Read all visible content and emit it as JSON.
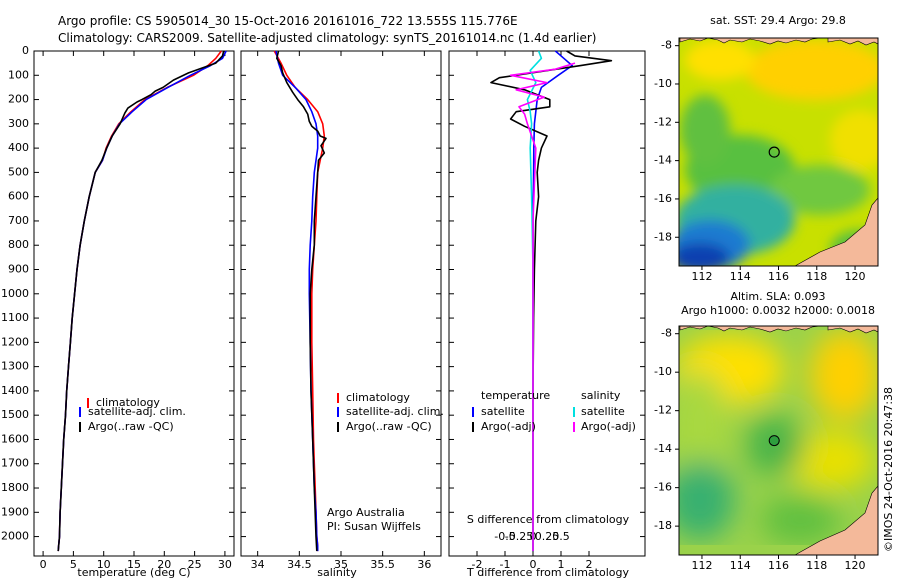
{
  "header": {
    "line1": "Argo profile: CS 5905014_30 15-Oct-2016 20161016_722 13.555S 115.776E",
    "line2": "Climatology: CARS2009. Satellite-adjusted climatology: synTS_20161014.nc (1.4d earlier)"
  },
  "colors": {
    "climatology": "#ff0000",
    "satellite": "#0000ff",
    "argo": "#000000",
    "s_satellite": "#00e0e0",
    "s_argo": "#ff00ff"
  },
  "chart_data": [
    {
      "type": "line",
      "id": "temperature",
      "xlabel": "temperature (deg C)",
      "ylabel": "",
      "xlim": [
        -1.5,
        31.5
      ],
      "ylim": [
        2080,
        0
      ],
      "xticks": [
        0,
        5,
        10,
        15,
        20,
        25,
        30
      ],
      "xticklabels": [
        "0",
        "5",
        "10",
        "15",
        "20",
        "25",
        "30"
      ],
      "yticks": [
        0,
        100,
        200,
        300,
        400,
        500,
        600,
        700,
        800,
        900,
        1000,
        1100,
        1200,
        1300,
        1400,
        1500,
        1600,
        1700,
        1800,
        1900,
        2000
      ],
      "yticklabels": [
        "0",
        "100",
        "200",
        "300",
        "400",
        "500",
        "600",
        "700",
        "800",
        "900",
        "1000",
        "1100",
        "1200",
        "1300",
        "1400",
        "1500",
        "1600",
        "1700",
        "1800",
        "1900",
        "2000"
      ],
      "legend": {
        "position": "center-left",
        "entries": [
          "climatology",
          "satellite-adj. clim.",
          "Argo(..raw -QC)"
        ]
      },
      "series": [
        {
          "name": "climatology",
          "color": "#ff0000",
          "x": [
            29.4,
            28.5,
            27.2,
            24.8,
            20.5,
            16.8,
            14.5,
            12.5,
            11.3,
            10.4,
            9.8,
            8.6,
            7.6,
            6.8,
            6.1,
            5.6,
            5.2,
            4.8,
            4.5,
            4.2,
            3.9,
            3.7,
            3.4,
            3.2,
            3.0,
            2.8,
            2.7,
            2.6,
            2.5
          ],
          "y": [
            0,
            30,
            60,
            100,
            150,
            200,
            250,
            300,
            350,
            400,
            450,
            500,
            600,
            700,
            800,
            900,
            1000,
            1100,
            1200,
            1300,
            1400,
            1500,
            1600,
            1700,
            1800,
            1900,
            2000,
            2030,
            2060
          ]
        },
        {
          "name": "satellite-adj. clim.",
          "color": "#0000ff",
          "x": [
            30.2,
            29.6,
            27.6,
            24.3,
            20.6,
            17.0,
            14.7,
            12.6,
            11.4,
            10.5,
            9.8,
            8.6,
            7.6,
            6.8,
            6.1,
            5.6,
            5.2,
            4.8,
            4.5,
            4.2,
            3.9,
            3.7,
            3.4,
            3.2,
            3.0,
            2.8,
            2.7,
            2.6,
            2.5
          ],
          "y": [
            0,
            30,
            60,
            100,
            150,
            200,
            250,
            300,
            350,
            400,
            450,
            500,
            600,
            700,
            800,
            900,
            1000,
            1100,
            1200,
            1300,
            1400,
            1500,
            1600,
            1700,
            1800,
            1900,
            2000,
            2030,
            2060
          ]
        },
        {
          "name": "Argo(..raw -QC)",
          "color": "#000000",
          "x": [
            29.8,
            29.6,
            28.5,
            24.0,
            21.5,
            19.8,
            18.5,
            17.8,
            16.3,
            15.5,
            14.0,
            13.5,
            12.7,
            11.4,
            10.5,
            9.7,
            8.6,
            7.6,
            6.8,
            6.1,
            5.6,
            5.2,
            4.8,
            4.5,
            4.2,
            3.9,
            3.7,
            3.4,
            3.2,
            3.0,
            2.8,
            2.7,
            2.5
          ],
          "y": [
            0,
            20,
            50,
            90,
            120,
            150,
            165,
            180,
            200,
            210,
            235,
            255,
            300,
            350,
            400,
            450,
            500,
            600,
            700,
            800,
            900,
            1000,
            1100,
            1200,
            1300,
            1400,
            1500,
            1600,
            1700,
            1800,
            1900,
            2000,
            2060
          ]
        }
      ]
    },
    {
      "type": "line",
      "id": "salinity",
      "xlabel": "salinity",
      "ylabel": "",
      "xlim": [
        33.8,
        36.2
      ],
      "ylim": [
        2080,
        0
      ],
      "xticks": [
        34,
        34.5,
        35,
        35.5,
        36
      ],
      "xticklabels": [
        "34",
        "34.5",
        "35",
        "35.5",
        "36"
      ],
      "legend": {
        "position": "center-right",
        "entries": [
          "climatology",
          "satellite-adj. clim.",
          "Argo(..raw -QC)"
        ]
      },
      "annotation": {
        "line1": "Argo Australia",
        "line2": "PI: Susan Wijffels"
      },
      "series": [
        {
          "name": "climatology",
          "color": "#ff0000",
          "x": [
            34.2,
            34.28,
            34.35,
            34.45,
            34.6,
            34.72,
            34.78,
            34.8,
            34.78,
            34.75,
            34.72,
            34.71,
            34.7,
            34.68,
            34.66,
            34.65,
            34.65,
            34.66,
            34.67,
            34.68,
            34.69,
            34.7,
            34.71,
            34.72,
            34.72
          ],
          "y": [
            0,
            50,
            100,
            150,
            200,
            250,
            300,
            350,
            400,
            450,
            500,
            600,
            700,
            800,
            900,
            1000,
            1200,
            1400,
            1600,
            1700,
            1800,
            1900,
            2000,
            2040,
            2060
          ]
        },
        {
          "name": "satellite-adj. clim.",
          "color": "#0000ff",
          "x": [
            34.22,
            34.25,
            34.3,
            34.45,
            34.58,
            34.65,
            34.7,
            34.72,
            34.72,
            34.7,
            34.68,
            34.66,
            34.65,
            34.63,
            34.62,
            34.62,
            34.63,
            34.64,
            34.66,
            34.67,
            34.68,
            34.7,
            34.71,
            34.72,
            34.72
          ],
          "y": [
            0,
            50,
            100,
            150,
            200,
            250,
            300,
            350,
            400,
            450,
            500,
            600,
            700,
            800,
            900,
            1000,
            1200,
            1400,
            1600,
            1700,
            1800,
            1900,
            2000,
            2040,
            2060
          ]
        },
        {
          "name": "Argo(..raw -QC)",
          "color": "#000000",
          "x": [
            34.25,
            34.23,
            34.28,
            34.3,
            34.35,
            34.42,
            34.48,
            34.55,
            34.6,
            34.62,
            34.65,
            34.72,
            34.75,
            34.82,
            34.76,
            34.8,
            34.73,
            34.72,
            34.7,
            34.68,
            34.68,
            34.65,
            34.63,
            34.63,
            34.64,
            34.66,
            34.68,
            34.7,
            34.71
          ],
          "y": [
            0,
            30,
            60,
            90,
            130,
            170,
            200,
            230,
            260,
            290,
            310,
            330,
            350,
            360,
            390,
            420,
            450,
            500,
            600,
            700,
            800,
            900,
            1000,
            1200,
            1400,
            1600,
            1800,
            2000,
            2060
          ]
        }
      ]
    },
    {
      "type": "line",
      "id": "difference",
      "xlabel": "T difference from climatology",
      "top_label": "S difference from climatology",
      "xlim": [
        -3,
        4
      ],
      "ylim": [
        2080,
        0
      ],
      "xticks": [
        -2,
        -1,
        0,
        1,
        2
      ],
      "xticklabels": [
        "-2",
        "-1",
        "0",
        "1",
        "2"
      ],
      "s_xticks": [
        -1,
        -0.5,
        0,
        0.5,
        1
      ],
      "s_xticklabels": [
        "-0.5",
        "-0.25",
        "0",
        "0.25",
        "0.5"
      ],
      "legend_temperature": {
        "heading": "temperature",
        "entries": [
          "satellite",
          "Argo(-adj)"
        ]
      },
      "legend_salinity": {
        "heading": "salinity",
        "entries": [
          "satellite",
          "Argo(-adj)"
        ]
      },
      "series": [
        {
          "name": "temperature satellite",
          "color": "#0000ff",
          "x": [
            0.8,
            1.1,
            1.4,
            0.9,
            0.3,
            0.15,
            0.1,
            0.05,
            0.03,
            0.02,
            0.0,
            0.0,
            0.0,
            0.0
          ],
          "y": [
            0,
            30,
            60,
            100,
            150,
            200,
            250,
            300,
            400,
            500,
            700,
            1000,
            1500,
            2060
          ]
        },
        {
          "name": "temperature Argo(-adj)",
          "color": "#000000",
          "x": [
            1.2,
            1.5,
            2.8,
            1.7,
            -1.2,
            -1.5,
            -0.3,
            0.6,
            0.6,
            -0.6,
            -0.8,
            -0.3,
            0.5,
            0.3,
            0.2,
            0.15,
            0.2,
            0.1,
            0.05,
            0.02,
            0.0,
            0.0,
            0.0
          ],
          "y": [
            0,
            20,
            40,
            60,
            110,
            130,
            160,
            200,
            230,
            250,
            280,
            310,
            350,
            400,
            450,
            500,
            600,
            700,
            900,
            1100,
            1400,
            1700,
            2060
          ]
        },
        {
          "name": "salinity satellite",
          "color": "#00e0e0",
          "x": [
            0.2,
            0.3,
            -0.1,
            0.1,
            -0.2,
            -0.1,
            -0.05,
            -0.1,
            -0.05,
            0.0,
            0.0,
            0.0
          ],
          "y": [
            0,
            30,
            80,
            130,
            200,
            250,
            300,
            400,
            600,
            900,
            1400,
            2060
          ]
        },
        {
          "name": "salinity Argo(-adj)",
          "color": "#ff00ff",
          "x": [
            1.5,
            0.8,
            -0.8,
            0.5,
            -0.6,
            0.4,
            -0.5,
            -0.3,
            -0.2,
            0.1,
            0.0,
            0.0,
            0.0
          ],
          "y": [
            50,
            75,
            100,
            130,
            160,
            190,
            230,
            260,
            300,
            400,
            700,
            1200,
            2060
          ]
        }
      ]
    },
    {
      "type": "heatmap",
      "id": "sst_map",
      "title": "sat. SST: 29.4 Argo: 29.8",
      "xlim": [
        110.8,
        121.2
      ],
      "ylim": [
        -19.5,
        -7.6
      ],
      "xticks": [
        112,
        114,
        116,
        118,
        120
      ],
      "xticklabels": [
        "112",
        "114",
        "116",
        "118",
        "120"
      ],
      "yticks": [
        -8,
        -10,
        -12,
        -14,
        -16,
        -18
      ],
      "yticklabels": [
        "-8",
        "-10",
        "-12",
        "-14",
        "-16",
        "-18"
      ],
      "marker": {
        "lon": 115.776,
        "lat": -13.555
      }
    },
    {
      "type": "heatmap",
      "id": "sla_map",
      "title_line1": "Altim. SLA: 0.093",
      "title_line2": "Argo h1000: 0.0032 h2000: 0.0018",
      "xlim": [
        110.8,
        121.2
      ],
      "ylim": [
        -19.5,
        -7.6
      ],
      "xticks": [
        112,
        114,
        116,
        118,
        120
      ],
      "xticklabels": [
        "112",
        "114",
        "116",
        "118",
        "120"
      ],
      "yticks": [
        -8,
        -10,
        -12,
        -14,
        -16,
        -18
      ],
      "yticklabels": [
        "-8",
        "-10",
        "-12",
        "-14",
        "-16",
        "-18"
      ],
      "marker": {
        "lon": 115.776,
        "lat": -13.555
      }
    }
  ],
  "credit": "©IMOS 24-Oct-2016 20:47:38"
}
